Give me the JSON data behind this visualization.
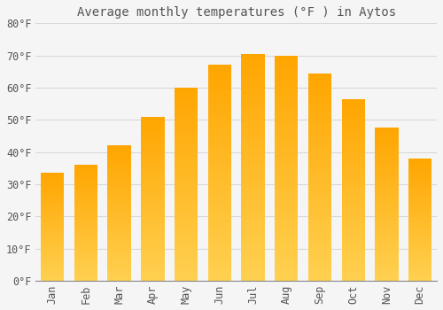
{
  "title": "Average monthly temperatures (°F ) in Aytos",
  "months": [
    "Jan",
    "Feb",
    "Mar",
    "Apr",
    "May",
    "Jun",
    "Jul",
    "Aug",
    "Sep",
    "Oct",
    "Nov",
    "Dec"
  ],
  "values": [
    33.5,
    36.0,
    42.0,
    51.0,
    60.0,
    67.0,
    70.5,
    70.0,
    64.5,
    56.5,
    47.5,
    38.0
  ],
  "color_bottom": "#FFD050",
  "color_top": "#FFA500",
  "background_color": "#F5F5F5",
  "grid_color": "#D8D8D8",
  "text_color": "#555555",
  "ylim": [
    0,
    80
  ],
  "ytick_step": 10,
  "title_fontsize": 10,
  "tick_fontsize": 8.5,
  "font_family": "monospace",
  "bar_width": 0.7,
  "gradient_steps": 100
}
